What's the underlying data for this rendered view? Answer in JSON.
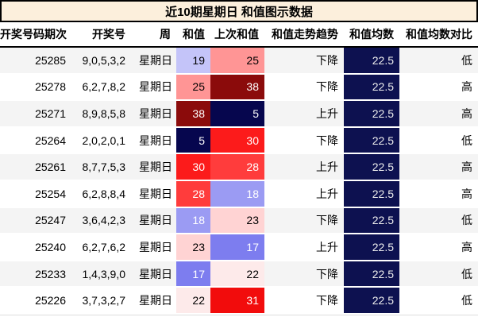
{
  "title": "近10期星期日 和值图示数据",
  "colors": {
    "title_bg": "#fcefdc",
    "title_border": "#000000",
    "zebra_odd_bg": "#f4f4f4",
    "zebra_even_bg": "#ffffff",
    "header_rule": "#000000",
    "mean_bg": "#0d1150",
    "mean_fg": "#eeeeee",
    "heat_low_extreme": "#06064e",
    "heat_high_extreme": "#8b0b0b",
    "table_bottom_rule": "#dddddd"
  },
  "table": {
    "columns": [
      {
        "key": "period",
        "label": "开奖号码期次"
      },
      {
        "key": "numbers",
        "label": "开奖号"
      },
      {
        "key": "week",
        "label": "周"
      },
      {
        "key": "sum",
        "label": "和值"
      },
      {
        "key": "prev_sum",
        "label": "上次和值"
      },
      {
        "key": "trend",
        "label": "和值走势趋势"
      },
      {
        "key": "mean",
        "label": "和值均数"
      },
      {
        "key": "compare",
        "label": "和值均数对比"
      }
    ],
    "rows": [
      {
        "period": "25285",
        "numbers": "9,0,5,3,2",
        "week": "星期日",
        "sum": {
          "value": "19",
          "bg": "#c4c4f9",
          "fg": "#000000"
        },
        "prev_sum": {
          "value": "25",
          "bg": "#ff9595",
          "fg": "#000000"
        },
        "trend": "下降",
        "mean": "22.5",
        "compare": "低"
      },
      {
        "period": "25278",
        "numbers": "6,2,7,8,2",
        "week": "星期日",
        "sum": {
          "value": "25",
          "bg": "#ff9595",
          "fg": "#000000"
        },
        "prev_sum": {
          "value": "38",
          "bg": "#8b0b0b",
          "fg": "#ffffff"
        },
        "trend": "下降",
        "mean": "22.5",
        "compare": "高"
      },
      {
        "period": "25271",
        "numbers": "8,9,8,5,8",
        "week": "星期日",
        "sum": {
          "value": "38",
          "bg": "#8b0b0b",
          "fg": "#ffffff"
        },
        "prev_sum": {
          "value": "5",
          "bg": "#06064e",
          "fg": "#ffffff"
        },
        "trend": "上升",
        "mean": "22.5",
        "compare": "高"
      },
      {
        "period": "25264",
        "numbers": "2,0,2,0,1",
        "week": "星期日",
        "sum": {
          "value": "5",
          "bg": "#06064e",
          "fg": "#ffffff"
        },
        "prev_sum": {
          "value": "30",
          "bg": "#fc1b1b",
          "fg": "#ffffff"
        },
        "trend": "下降",
        "mean": "22.5",
        "compare": "低"
      },
      {
        "period": "25261",
        "numbers": "8,7,7,5,3",
        "week": "星期日",
        "sum": {
          "value": "30",
          "bg": "#fc1b1b",
          "fg": "#ffffff"
        },
        "prev_sum": {
          "value": "28",
          "bg": "#ff3c3c",
          "fg": "#ffffff"
        },
        "trend": "上升",
        "mean": "22.5",
        "compare": "高"
      },
      {
        "period": "25254",
        "numbers": "6,2,8,8,4",
        "week": "星期日",
        "sum": {
          "value": "28",
          "bg": "#ff3c3c",
          "fg": "#ffffff"
        },
        "prev_sum": {
          "value": "18",
          "bg": "#9b9bf3",
          "fg": "#ffffff"
        },
        "trend": "上升",
        "mean": "22.5",
        "compare": "高"
      },
      {
        "period": "25247",
        "numbers": "3,6,4,2,3",
        "week": "星期日",
        "sum": {
          "value": "18",
          "bg": "#9b9bf3",
          "fg": "#ffffff"
        },
        "prev_sum": {
          "value": "23",
          "bg": "#ffd3d3",
          "fg": "#000000"
        },
        "trend": "下降",
        "mean": "22.5",
        "compare": "低"
      },
      {
        "period": "25240",
        "numbers": "6,2,7,6,2",
        "week": "星期日",
        "sum": {
          "value": "23",
          "bg": "#ffd3d3",
          "fg": "#000000"
        },
        "prev_sum": {
          "value": "17",
          "bg": "#7d7def",
          "fg": "#ffffff"
        },
        "trend": "上升",
        "mean": "22.5",
        "compare": "高"
      },
      {
        "period": "25233",
        "numbers": "1,4,3,9,0",
        "week": "星期日",
        "sum": {
          "value": "17",
          "bg": "#7d7def",
          "fg": "#ffffff"
        },
        "prev_sum": {
          "value": "22",
          "bg": "#fdeaea",
          "fg": "#000000"
        },
        "trend": "下降",
        "mean": "22.5",
        "compare": "低"
      },
      {
        "period": "25226",
        "numbers": "3,7,3,2,7",
        "week": "星期日",
        "sum": {
          "value": "22",
          "bg": "#fdeaea",
          "fg": "#000000"
        },
        "prev_sum": {
          "value": "31",
          "bg": "#f20c0c",
          "fg": "#ffffff"
        },
        "trend": "下降",
        "mean": "22.5",
        "compare": "低"
      }
    ]
  },
  "chart_data": {
    "type": "table",
    "title": "近10期星期日 和值图示数据",
    "columns": [
      "开奖号码期次",
      "开奖号",
      "周",
      "和值",
      "上次和值",
      "和值走势趋势",
      "和值均数",
      "和值均数对比"
    ],
    "rows": [
      [
        "25285",
        "9,0,5,3,2",
        "星期日",
        19,
        25,
        "下降",
        22.5,
        "低"
      ],
      [
        "25278",
        "6,2,7,8,2",
        "星期日",
        25,
        38,
        "下降",
        22.5,
        "高"
      ],
      [
        "25271",
        "8,9,8,5,8",
        "星期日",
        38,
        5,
        "上升",
        22.5,
        "高"
      ],
      [
        "25264",
        "2,0,2,0,1",
        "星期日",
        5,
        30,
        "下降",
        22.5,
        "低"
      ],
      [
        "25261",
        "8,7,7,5,3",
        "星期日",
        30,
        28,
        "上升",
        22.5,
        "高"
      ],
      [
        "25254",
        "6,2,8,8,4",
        "星期日",
        28,
        18,
        "上升",
        22.5,
        "高"
      ],
      [
        "25247",
        "3,6,4,2,3",
        "星期日",
        18,
        23,
        "下降",
        22.5,
        "低"
      ],
      [
        "25240",
        "6,2,7,6,2",
        "星期日",
        23,
        17,
        "上升",
        22.5,
        "高"
      ],
      [
        "25233",
        "1,4,3,9,0",
        "星期日",
        17,
        22,
        "下降",
        22.5,
        "低"
      ],
      [
        "25226",
        "3,7,3,2,7",
        "星期日",
        22,
        31,
        "下降",
        22.5,
        "低"
      ]
    ],
    "layout_hints": {
      "heat_columns": [
        "和值",
        "上次和值"
      ],
      "heat_colormap": "diverging blue(low)-white-red(high), centered near 22.5, range ~5-38",
      "mean_column_style": "solid dark navy, white text",
      "zebra_striping": true,
      "grid": false
    }
  }
}
